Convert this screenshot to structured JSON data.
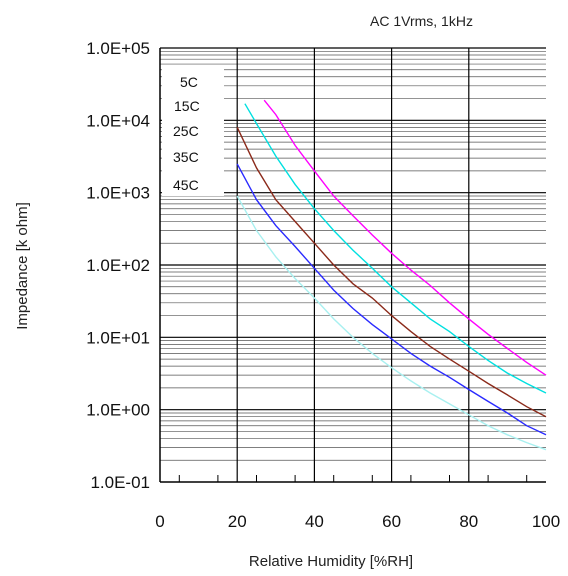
{
  "chart_data": {
    "type": "line",
    "title": "",
    "annotation": "AC 1Vrms, 1kHz",
    "xlabel": "Relative Humidity [%RH]",
    "ylabel": "Impedance [k ohm]",
    "xlim": [
      0,
      100
    ],
    "ylim": [
      0.1,
      100000
    ],
    "yscale": "log",
    "grid": true,
    "x_ticks": [
      "0",
      "20",
      "40",
      "60",
      "80",
      "100"
    ],
    "y_ticks": [
      "1.0E-01",
      "1.0E+00",
      "1.0E+01",
      "1.0E+02",
      "1.0E+03",
      "1.0E+04",
      "1.0E+05"
    ],
    "legend_position": "top-left",
    "series": [
      {
        "name": "5C",
        "color": "#ff00ff",
        "x": [
          27,
          30,
          35,
          40,
          45,
          50,
          55,
          60,
          65,
          70,
          75,
          80,
          85,
          90,
          95,
          100
        ],
        "y": [
          19000,
          12000,
          4500,
          2000,
          900,
          480,
          260,
          145,
          85,
          52,
          30,
          18,
          11,
          7,
          4.5,
          3
        ]
      },
      {
        "name": "15C",
        "color": "#00e0e0",
        "x": [
          22,
          25,
          30,
          35,
          40,
          45,
          50,
          55,
          60,
          65,
          70,
          75,
          80,
          85,
          90,
          95,
          100
        ],
        "y": [
          17000,
          9000,
          3200,
          1300,
          600,
          300,
          160,
          90,
          50,
          30,
          18,
          12,
          7.5,
          4.8,
          3.2,
          2.3,
          1.7
        ]
      },
      {
        "name": "25C",
        "color": "#8b2a1a",
        "x": [
          20,
          25,
          30,
          35,
          40,
          45,
          50,
          55,
          60,
          65,
          70,
          75,
          80,
          85,
          90,
          95,
          100
        ],
        "y": [
          8000,
          2200,
          800,
          400,
          200,
          100,
          55,
          35,
          20,
          12,
          7.5,
          5,
          3.4,
          2.3,
          1.6,
          1.1,
          0.8
        ]
      },
      {
        "name": "35C",
        "color": "#2a2aff",
        "x": [
          20,
          25,
          30,
          35,
          40,
          45,
          50,
          55,
          60,
          65,
          70,
          75,
          80,
          85,
          90,
          95,
          100
        ],
        "y": [
          2500,
          800,
          350,
          180,
          90,
          45,
          25,
          15,
          9.5,
          6,
          4,
          2.8,
          1.9,
          1.3,
          0.9,
          0.6,
          0.45
        ]
      },
      {
        "name": "45C",
        "color": "#a8f0f0",
        "x": [
          20,
          25,
          30,
          35,
          40,
          45,
          50,
          55,
          60,
          65,
          70,
          75,
          80,
          85,
          90,
          95,
          100
        ],
        "y": [
          900,
          300,
          130,
          65,
          35,
          18,
          10,
          6,
          3.8,
          2.5,
          1.7,
          1.2,
          0.85,
          0.6,
          0.45,
          0.35,
          0.28
        ]
      }
    ]
  }
}
